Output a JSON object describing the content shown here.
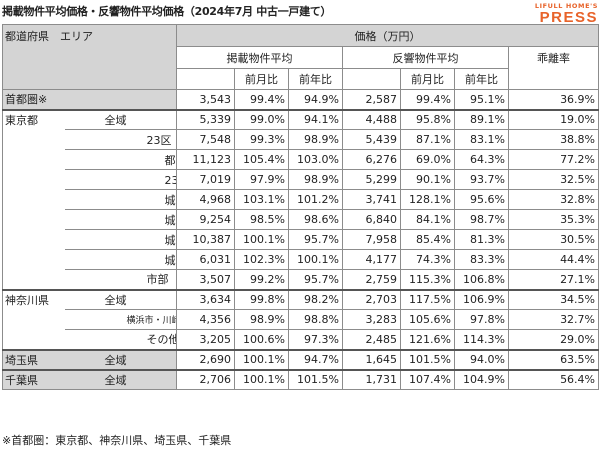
{
  "title": "掲載物件平均価格・反響物件平均価格（2024年7月 中古一戸建て）",
  "brand": {
    "line1": "LIFULL HOME'S",
    "line2": "PRESS",
    "color": "#e8632a"
  },
  "headers": {
    "prefecture_area": "都道府県　エリア",
    "price": "価格（万円）",
    "listed": "掲載物件平均",
    "response": "反響物件平均",
    "mom": "前月比",
    "yoy": "前年比",
    "gap": "乖離率"
  },
  "rows": [
    {
      "pref": "首都圏※",
      "area": "",
      "lp": "3,543",
      "lm": "99.4%",
      "ly": "94.9%",
      "rp": "2,587",
      "rm": "99.4%",
      "ry": "95.1%",
      "gap": "36.9%"
    },
    {
      "pref": "東京都",
      "area": "全域",
      "lp": "5,339",
      "lm": "99.0%",
      "ly": "94.1%",
      "rp": "4,488",
      "rm": "95.8%",
      "ry": "89.1%",
      "gap": "19.0%"
    },
    {
      "pref": "",
      "area": "23区",
      "lp": "7,548",
      "lm": "99.3%",
      "ly": "98.9%",
      "rp": "5,439",
      "rm": "87.1%",
      "ry": "83.1%",
      "gap": "38.8%"
    },
    {
      "pref": "",
      "area": "都心6区",
      "lp": "11,123",
      "lm": "105.4%",
      "ly": "103.0%",
      "rp": "6,276",
      "rm": "69.0%",
      "ry": "64.3%",
      "gap": "77.2%"
    },
    {
      "pref": "",
      "area": "23区その他",
      "lp": "7,019",
      "lm": "97.9%",
      "ly": "98.9%",
      "rp": "5,299",
      "rm": "90.1%",
      "ry": "93.7%",
      "gap": "32.5%"
    },
    {
      "pref": "",
      "area": "城東",
      "lp": "4,968",
      "lm": "103.1%",
      "ly": "101.2%",
      "rp": "3,741",
      "rm": "128.1%",
      "ry": "95.6%",
      "gap": "32.8%"
    },
    {
      "pref": "",
      "area": "城西",
      "lp": "9,254",
      "lm": "98.5%",
      "ly": "98.6%",
      "rp": "6,840",
      "rm": "84.1%",
      "ry": "98.7%",
      "gap": "35.3%"
    },
    {
      "pref": "",
      "area": "城南",
      "lp": "10,387",
      "lm": "100.1%",
      "ly": "95.7%",
      "rp": "7,958",
      "rm": "85.4%",
      "ry": "81.3%",
      "gap": "30.5%"
    },
    {
      "pref": "",
      "area": "城北",
      "lp": "6,031",
      "lm": "102.3%",
      "ly": "100.1%",
      "rp": "4,177",
      "rm": "74.3%",
      "ry": "83.3%",
      "gap": "44.4%"
    },
    {
      "pref": "",
      "area": "市部",
      "lp": "3,507",
      "lm": "99.2%",
      "ly": "95.7%",
      "rp": "2,759",
      "rm": "115.3%",
      "ry": "106.8%",
      "gap": "27.1%"
    },
    {
      "pref": "神奈川県",
      "area": "全域",
      "lp": "3,634",
      "lm": "99.8%",
      "ly": "98.2%",
      "rp": "2,703",
      "rm": "117.5%",
      "ry": "106.9%",
      "gap": "34.5%"
    },
    {
      "pref": "",
      "area": "横浜市・川崎市",
      "lp": "4,356",
      "lm": "98.9%",
      "ly": "98.8%",
      "rp": "3,283",
      "rm": "105.6%",
      "ry": "97.8%",
      "gap": "32.7%"
    },
    {
      "pref": "",
      "area": "その他",
      "lp": "3,205",
      "lm": "100.6%",
      "ly": "97.3%",
      "rp": "2,485",
      "rm": "121.6%",
      "ry": "114.3%",
      "gap": "29.0%"
    },
    {
      "pref": "埼玉県",
      "area": "全域",
      "lp": "2,690",
      "lm": "100.1%",
      "ly": "94.7%",
      "rp": "1,645",
      "rm": "101.5%",
      "ry": "94.0%",
      "gap": "63.5%"
    },
    {
      "pref": "千葉県",
      "area": "全域",
      "lp": "2,706",
      "lm": "100.1%",
      "ly": "101.5%",
      "rp": "1,731",
      "rm": "107.4%",
      "ry": "104.9%",
      "gap": "56.4%"
    }
  ],
  "note": "※首都圏：東京都、神奈川県、埼玉県、千葉県"
}
